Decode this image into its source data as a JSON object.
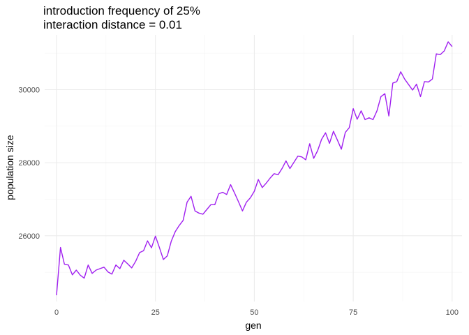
{
  "chart_data": {
    "type": "line",
    "title_line1": "introduction frequency of 25%",
    "title_line2": "interaction distance = 0.01",
    "xlabel": "gen",
    "ylabel": "population size",
    "xlim": [
      -3,
      102.5
    ],
    "ylim": [
      24200,
      31500
    ],
    "x_ticks": [
      0,
      25,
      50,
      75,
      100
    ],
    "x_tick_labels": [
      "0",
      "25",
      "50",
      "75",
      "100"
    ],
    "y_ticks": [
      26000,
      28000,
      30000
    ],
    "y_tick_labels": [
      "26000",
      "28000",
      "30000"
    ],
    "grid": true,
    "legend": "none",
    "series": [
      {
        "color": "#a020f0",
        "x": [
          0,
          1,
          2,
          3,
          4,
          5,
          6,
          7,
          8,
          9,
          10,
          11,
          12,
          13,
          14,
          15,
          16,
          17,
          18,
          19,
          20,
          21,
          22,
          23,
          24,
          25,
          26,
          27,
          28,
          29,
          30,
          31,
          32,
          33,
          34,
          35,
          36,
          37,
          38,
          39,
          40,
          41,
          42,
          43,
          44,
          45,
          46,
          47,
          48,
          49,
          50,
          51,
          52,
          53,
          54,
          55,
          56,
          57,
          58,
          59,
          60,
          61,
          62,
          63,
          64,
          65,
          66,
          67,
          68,
          69,
          70,
          71,
          72,
          73,
          74,
          75,
          76,
          77,
          78,
          79,
          80,
          81,
          82,
          83,
          84,
          85,
          86,
          87,
          88,
          89,
          90,
          91,
          92,
          93,
          94,
          95,
          96,
          97,
          98,
          99,
          100
        ],
        "y": [
          24370,
          25680,
          25220,
          25200,
          24930,
          25060,
          24920,
          24840,
          25200,
          24970,
          25060,
          25100,
          25140,
          25010,
          24950,
          25200,
          25100,
          25330,
          25230,
          25120,
          25300,
          25540,
          25590,
          25860,
          25670,
          25990,
          25680,
          25350,
          25450,
          25850,
          26110,
          26280,
          26420,
          26920,
          27080,
          26680,
          26620,
          26590,
          26720,
          26850,
          26850,
          27150,
          27190,
          27130,
          27400,
          27170,
          26930,
          26680,
          26920,
          27040,
          27220,
          27540,
          27320,
          27440,
          27580,
          27700,
          27670,
          27840,
          28050,
          27840,
          28010,
          28180,
          28160,
          28080,
          28520,
          28120,
          28330,
          28640,
          28820,
          28530,
          28860,
          28620,
          28370,
          28830,
          28960,
          29480,
          29190,
          29420,
          29180,
          29230,
          29180,
          29420,
          29810,
          29890,
          29280,
          30180,
          30220,
          30490,
          30290,
          30140,
          29990,
          30150,
          29810,
          30220,
          30210,
          30290,
          30980,
          30960,
          31060,
          31310,
          31180
        ]
      }
    ]
  }
}
